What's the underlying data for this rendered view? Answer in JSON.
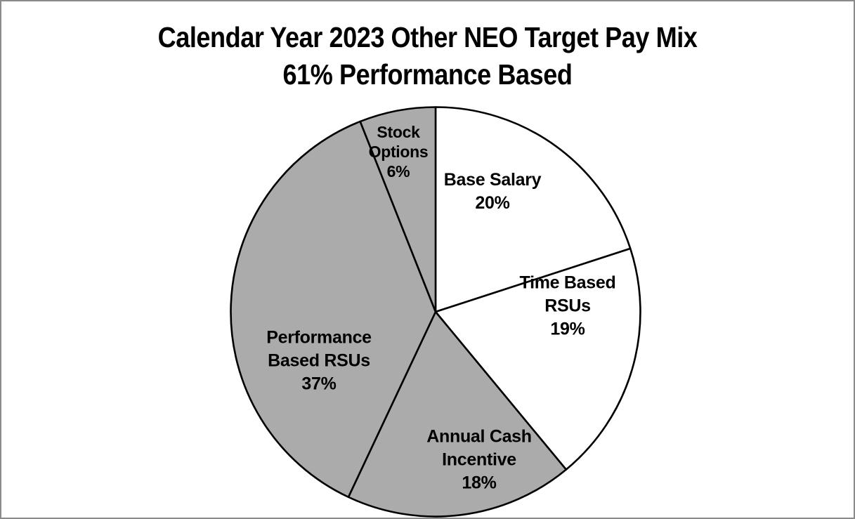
{
  "page": {
    "background_color": "#ffffff",
    "frame_border_color": "#8a8a8a"
  },
  "chart_data": {
    "type": "pie",
    "title": "Calendar Year 2023 Other NEO Target Pay Mix 61% Performance Based",
    "title_lines": [
      "Calendar Year 2023 Other NEO Target Pay Mix",
      "61% Performance Based"
    ],
    "start_angle": "12 o'clock",
    "direction": "clockwise",
    "stroke_color": "#000000",
    "legend": "none (labels inside slices)",
    "categories": [
      "Base Salary",
      "Time Based RSUs",
      "Annual Cash Incentive",
      "Performance Based RSUs",
      "Stock Options"
    ],
    "values": [
      20,
      19,
      18,
      37,
      6
    ],
    "slices": [
      {
        "name": "Base Salary",
        "value": 20,
        "display_value": "20%",
        "color": "#ffffff",
        "label_lines": [
          "Base Salary",
          "20%"
        ]
      },
      {
        "name": "Time Based RSUs",
        "value": 19,
        "display_value": "19%",
        "color": "#ffffff",
        "label_lines": [
          "Time Based",
          "RSUs",
          "19%"
        ]
      },
      {
        "name": "Annual Cash Incentive",
        "value": 18,
        "display_value": "18%",
        "color": "#ababab",
        "label_lines": [
          "Annual Cash",
          "Incentive",
          "18%"
        ]
      },
      {
        "name": "Performance Based RSUs",
        "value": 37,
        "display_value": "37%",
        "color": "#ababab",
        "label_lines": [
          "Performance",
          "Based RSUs",
          "37%"
        ]
      },
      {
        "name": "Stock Options",
        "value": 6,
        "display_value": "6%",
        "color": "#ababab",
        "label_lines": [
          "Stock",
          "Options",
          "6%"
        ]
      }
    ]
  }
}
